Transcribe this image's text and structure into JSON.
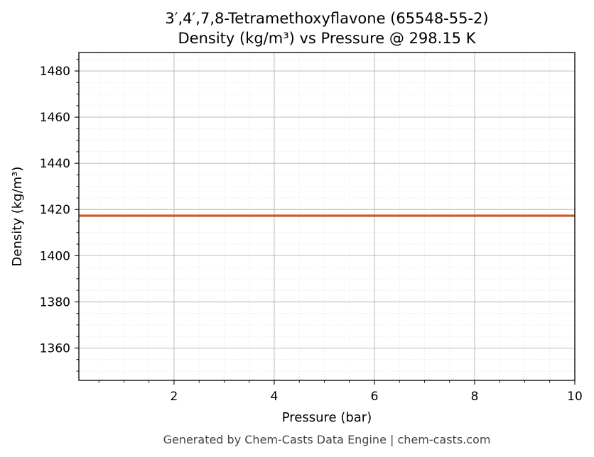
{
  "chart_data": {
    "type": "line",
    "title": "3′,4′,7,8-Tetramethoxyflavone (65548-55-2)",
    "subtitle": "Density (kg/m³) vs Pressure @ 298.15 K",
    "xlabel": "Pressure (bar)",
    "ylabel": "Density (kg/m³)",
    "xlim": [
      0.1,
      10
    ],
    "ylim": [
      1346,
      1488
    ],
    "x_ticks": [
      2,
      4,
      6,
      8,
      10
    ],
    "y_ticks": [
      1360,
      1380,
      1400,
      1420,
      1440,
      1460,
      1480
    ],
    "grid": true,
    "series": [
      {
        "color": "#cc5a2b",
        "x": [
          0.1,
          1,
          2,
          3,
          4,
          5,
          6,
          7,
          8,
          9,
          10
        ],
        "y": [
          1417.3,
          1417.3,
          1417.3,
          1417.3,
          1417.3,
          1417.3,
          1417.3,
          1417.3,
          1417.3,
          1417.3,
          1417.3
        ]
      }
    ]
  },
  "footer": "Generated by Chem-Casts Data Engine | chem-casts.com"
}
